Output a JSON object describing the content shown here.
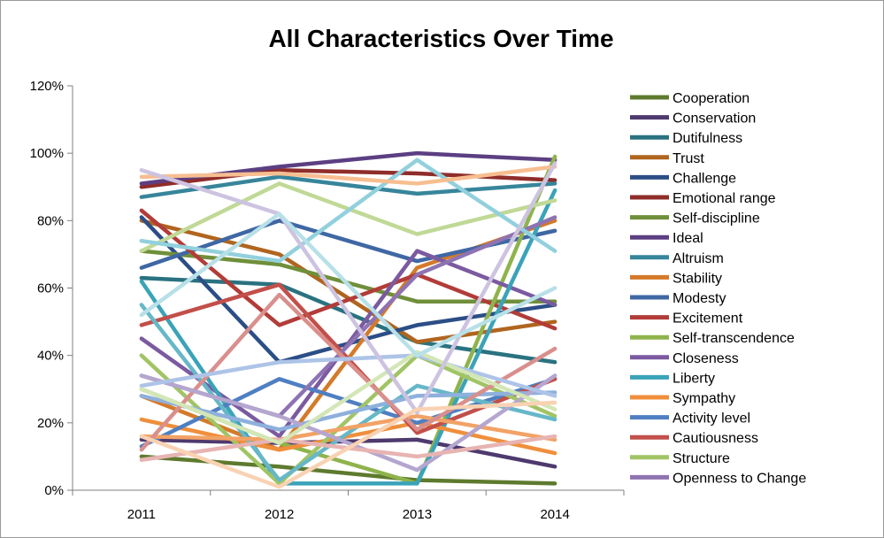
{
  "chart_data": {
    "type": "line",
    "title": "All Characteristics Over Time",
    "xlabel": "",
    "ylabel": "",
    "categories": [
      "2011",
      "2012",
      "2013",
      "2014"
    ],
    "y_ticks": [
      "0%",
      "20%",
      "40%",
      "60%",
      "80%",
      "100%",
      "120%"
    ],
    "ylim": [
      0,
      120
    ],
    "grid": false,
    "legend_position": "right",
    "series": [
      {
        "name": "Cooperation",
        "color": "#5e7a2e",
        "values": [
          10,
          7,
          3,
          2
        ]
      },
      {
        "name": "Conservation",
        "color": "#4e3a6e",
        "values": [
          15,
          14,
          15,
          7
        ]
      },
      {
        "name": "Dutifulness",
        "color": "#2a7280",
        "values": [
          63,
          61,
          44,
          38
        ]
      },
      {
        "name": "Trust",
        "color": "#b0651f",
        "values": [
          80,
          70,
          44,
          50
        ]
      },
      {
        "name": "Challenge",
        "color": "#2c4e86",
        "values": [
          81,
          38,
          49,
          55
        ]
      },
      {
        "name": "Emotional range",
        "color": "#8f2d2a",
        "values": [
          90,
          95,
          94,
          92
        ]
      },
      {
        "name": "Self-discipline",
        "color": "#6f8f3a",
        "values": [
          71,
          67,
          56,
          56
        ]
      },
      {
        "name": "Ideal",
        "color": "#5c3f82",
        "values": [
          91,
          96,
          100,
          98
        ]
      },
      {
        "name": "Altruism",
        "color": "#37859a",
        "values": [
          87,
          93,
          88,
          91
        ]
      },
      {
        "name": "Stability",
        "color": "#d47a2a",
        "values": [
          28,
          12,
          66,
          80
        ]
      },
      {
        "name": "Modesty",
        "color": "#3f67a4",
        "values": [
          66,
          80,
          68,
          77
        ]
      },
      {
        "name": "Excitement",
        "color": "#b23c38",
        "values": [
          83,
          49,
          64,
          48
        ]
      },
      {
        "name": "Self-transcendence",
        "color": "#8fb34c",
        "values": [
          30,
          14,
          2,
          99
        ]
      },
      {
        "name": "Closeness",
        "color": "#7b5aa0",
        "values": [
          45,
          16,
          71,
          55
        ]
      },
      {
        "name": "Liberty",
        "color": "#3aa3b8",
        "values": [
          62,
          2,
          2,
          89
        ]
      },
      {
        "name": "Sympathy",
        "color": "#ef8f3c",
        "values": [
          21,
          12,
          20,
          11
        ]
      },
      {
        "name": "Activity level",
        "color": "#4f7fc2",
        "values": [
          13,
          33,
          20,
          33
        ]
      },
      {
        "name": "Cautiousness",
        "color": "#c24f4a",
        "values": [
          49,
          61,
          17,
          33
        ]
      },
      {
        "name": "Structure",
        "color": "#a1c465",
        "values": [
          40,
          2,
          40,
          22
        ]
      },
      {
        "name": "Openness to Change",
        "color": "#8e73b2",
        "values": [
          34,
          22,
          64,
          81
        ]
      },
      {
        "color": "#66b7c8",
        "values": [
          55,
          3,
          31,
          21
        ]
      },
      {
        "color": "#f2a266",
        "values": [
          16,
          15,
          22,
          15
        ]
      },
      {
        "color": "#8eb0dc",
        "values": [
          28,
          18,
          28,
          29
        ]
      },
      {
        "color": "#d98f8c",
        "values": [
          12,
          58,
          18,
          42
        ]
      },
      {
        "color": "#c0d996",
        "values": [
          71,
          91,
          76,
          86
        ]
      },
      {
        "color": "#b4a6cf",
        "values": [
          34,
          22,
          6,
          34
        ]
      },
      {
        "color": "#92d0dd",
        "values": [
          74,
          68,
          98,
          71
        ]
      },
      {
        "color": "#f7be90",
        "values": [
          93,
          94,
          91,
          96
        ]
      },
      {
        "color": "#adc4e7",
        "values": [
          31,
          38,
          40,
          28
        ]
      },
      {
        "color": "#e7b4b2",
        "values": [
          9,
          15,
          10,
          16
        ]
      },
      {
        "color": "#d3e6b6",
        "values": [
          30,
          14,
          41,
          24
        ]
      },
      {
        "color": "#cdc3e1",
        "values": [
          95,
          82,
          23,
          97
        ]
      },
      {
        "color": "#b8e0e8",
        "values": [
          52,
          82,
          40,
          60
        ]
      },
      {
        "color": "#f9d2b3",
        "values": [
          16,
          1,
          24,
          26
        ]
      }
    ]
  }
}
